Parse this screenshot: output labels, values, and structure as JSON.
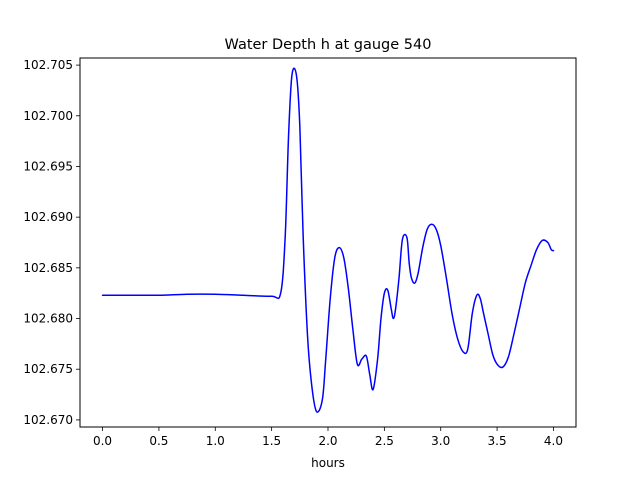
{
  "chart_data": {
    "type": "line",
    "title": "Water Depth h at gauge 540",
    "xlabel": "hours",
    "ylabel": "",
    "xlim": [
      -0.2,
      4.2
    ],
    "ylim": [
      102.6693,
      102.7057
    ],
    "grid": false,
    "xticks": [
      0.0,
      0.5,
      1.0,
      1.5,
      2.0,
      2.5,
      3.0,
      3.5,
      4.0
    ],
    "xtick_labels": [
      "0.0",
      "0.5",
      "1.0",
      "1.5",
      "2.0",
      "2.5",
      "3.0",
      "3.5",
      "4.0"
    ],
    "yticks": [
      102.67,
      102.675,
      102.68,
      102.685,
      102.69,
      102.695,
      102.7,
      102.705
    ],
    "ytick_labels": [
      "102.670",
      "102.675",
      "102.680",
      "102.685",
      "102.690",
      "102.695",
      "102.700",
      "102.705"
    ],
    "series": [
      {
        "color": "#0000ff",
        "x": [
          0.0,
          0.25,
          0.5,
          0.75,
          1.0,
          1.25,
          1.5,
          1.58,
          1.62,
          1.65,
          1.68,
          1.72,
          1.75,
          1.78,
          1.82,
          1.86,
          1.9,
          1.95,
          1.98,
          2.02,
          2.06,
          2.1,
          2.14,
          2.18,
          2.22,
          2.26,
          2.3,
          2.34,
          2.37,
          2.4,
          2.44,
          2.47,
          2.5,
          2.53,
          2.56,
          2.58,
          2.6,
          2.63,
          2.66,
          2.7,
          2.72,
          2.74,
          2.77,
          2.8,
          2.84,
          2.88,
          2.92,
          2.96,
          3.0,
          3.05,
          3.1,
          3.15,
          3.2,
          3.24,
          3.28,
          3.32,
          3.35,
          3.38,
          3.42,
          3.46,
          3.5,
          3.55,
          3.6,
          3.65,
          3.7,
          3.75,
          3.8,
          3.85,
          3.9,
          3.95,
          3.98,
          4.0
        ],
        "y": [
          102.6823,
          102.6823,
          102.6823,
          102.6824,
          102.6824,
          102.6823,
          102.6822,
          102.6825,
          102.688,
          102.698,
          102.704,
          102.704,
          102.699,
          102.688,
          102.678,
          102.673,
          102.6708,
          102.672,
          102.676,
          102.682,
          102.686,
          102.687,
          102.686,
          102.683,
          102.679,
          102.6755,
          102.676,
          102.6763,
          102.6745,
          102.673,
          102.676,
          102.68,
          102.6825,
          102.6828,
          102.681,
          102.68,
          102.681,
          102.684,
          102.6878,
          102.688,
          102.6855,
          102.684,
          102.6835,
          102.6845,
          102.687,
          102.6888,
          102.6893,
          102.6888,
          102.6872,
          102.684,
          102.6805,
          102.678,
          102.6767,
          102.677,
          102.6805,
          102.6823,
          102.682,
          102.6805,
          102.6785,
          102.6765,
          102.6755,
          102.6752,
          102.6762,
          102.6785,
          102.681,
          102.6835,
          102.6852,
          102.6868,
          102.6877,
          102.6875,
          102.6868,
          102.6867
        ]
      }
    ]
  }
}
